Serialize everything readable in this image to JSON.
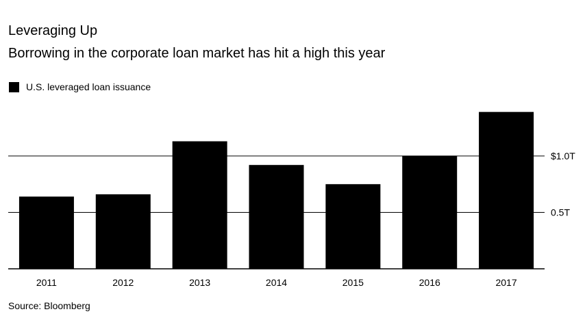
{
  "chart_data": {
    "type": "bar",
    "title": "Leveraging Up",
    "subtitle": "Borrowing in the corporate loan market has hit a high this year",
    "legend": [
      {
        "label": "U.S. leveraged loan issuance",
        "color": "#000000"
      }
    ],
    "categories": [
      "2011",
      "2012",
      "2013",
      "2014",
      "2015",
      "2016",
      "2017"
    ],
    "series": [
      {
        "name": "U.S. leveraged loan issuance",
        "values": [
          0.64,
          0.66,
          1.13,
          0.92,
          0.75,
          1.0,
          1.39
        ]
      }
    ],
    "ylim": [
      0,
      1.39
    ],
    "yticks": [
      {
        "value": 0.5,
        "label": "0.5T"
      },
      {
        "value": 1.0,
        "label": "$1.0T"
      }
    ],
    "grid": true,
    "legend_position": "top-left",
    "source": "Source: Bloomberg"
  }
}
